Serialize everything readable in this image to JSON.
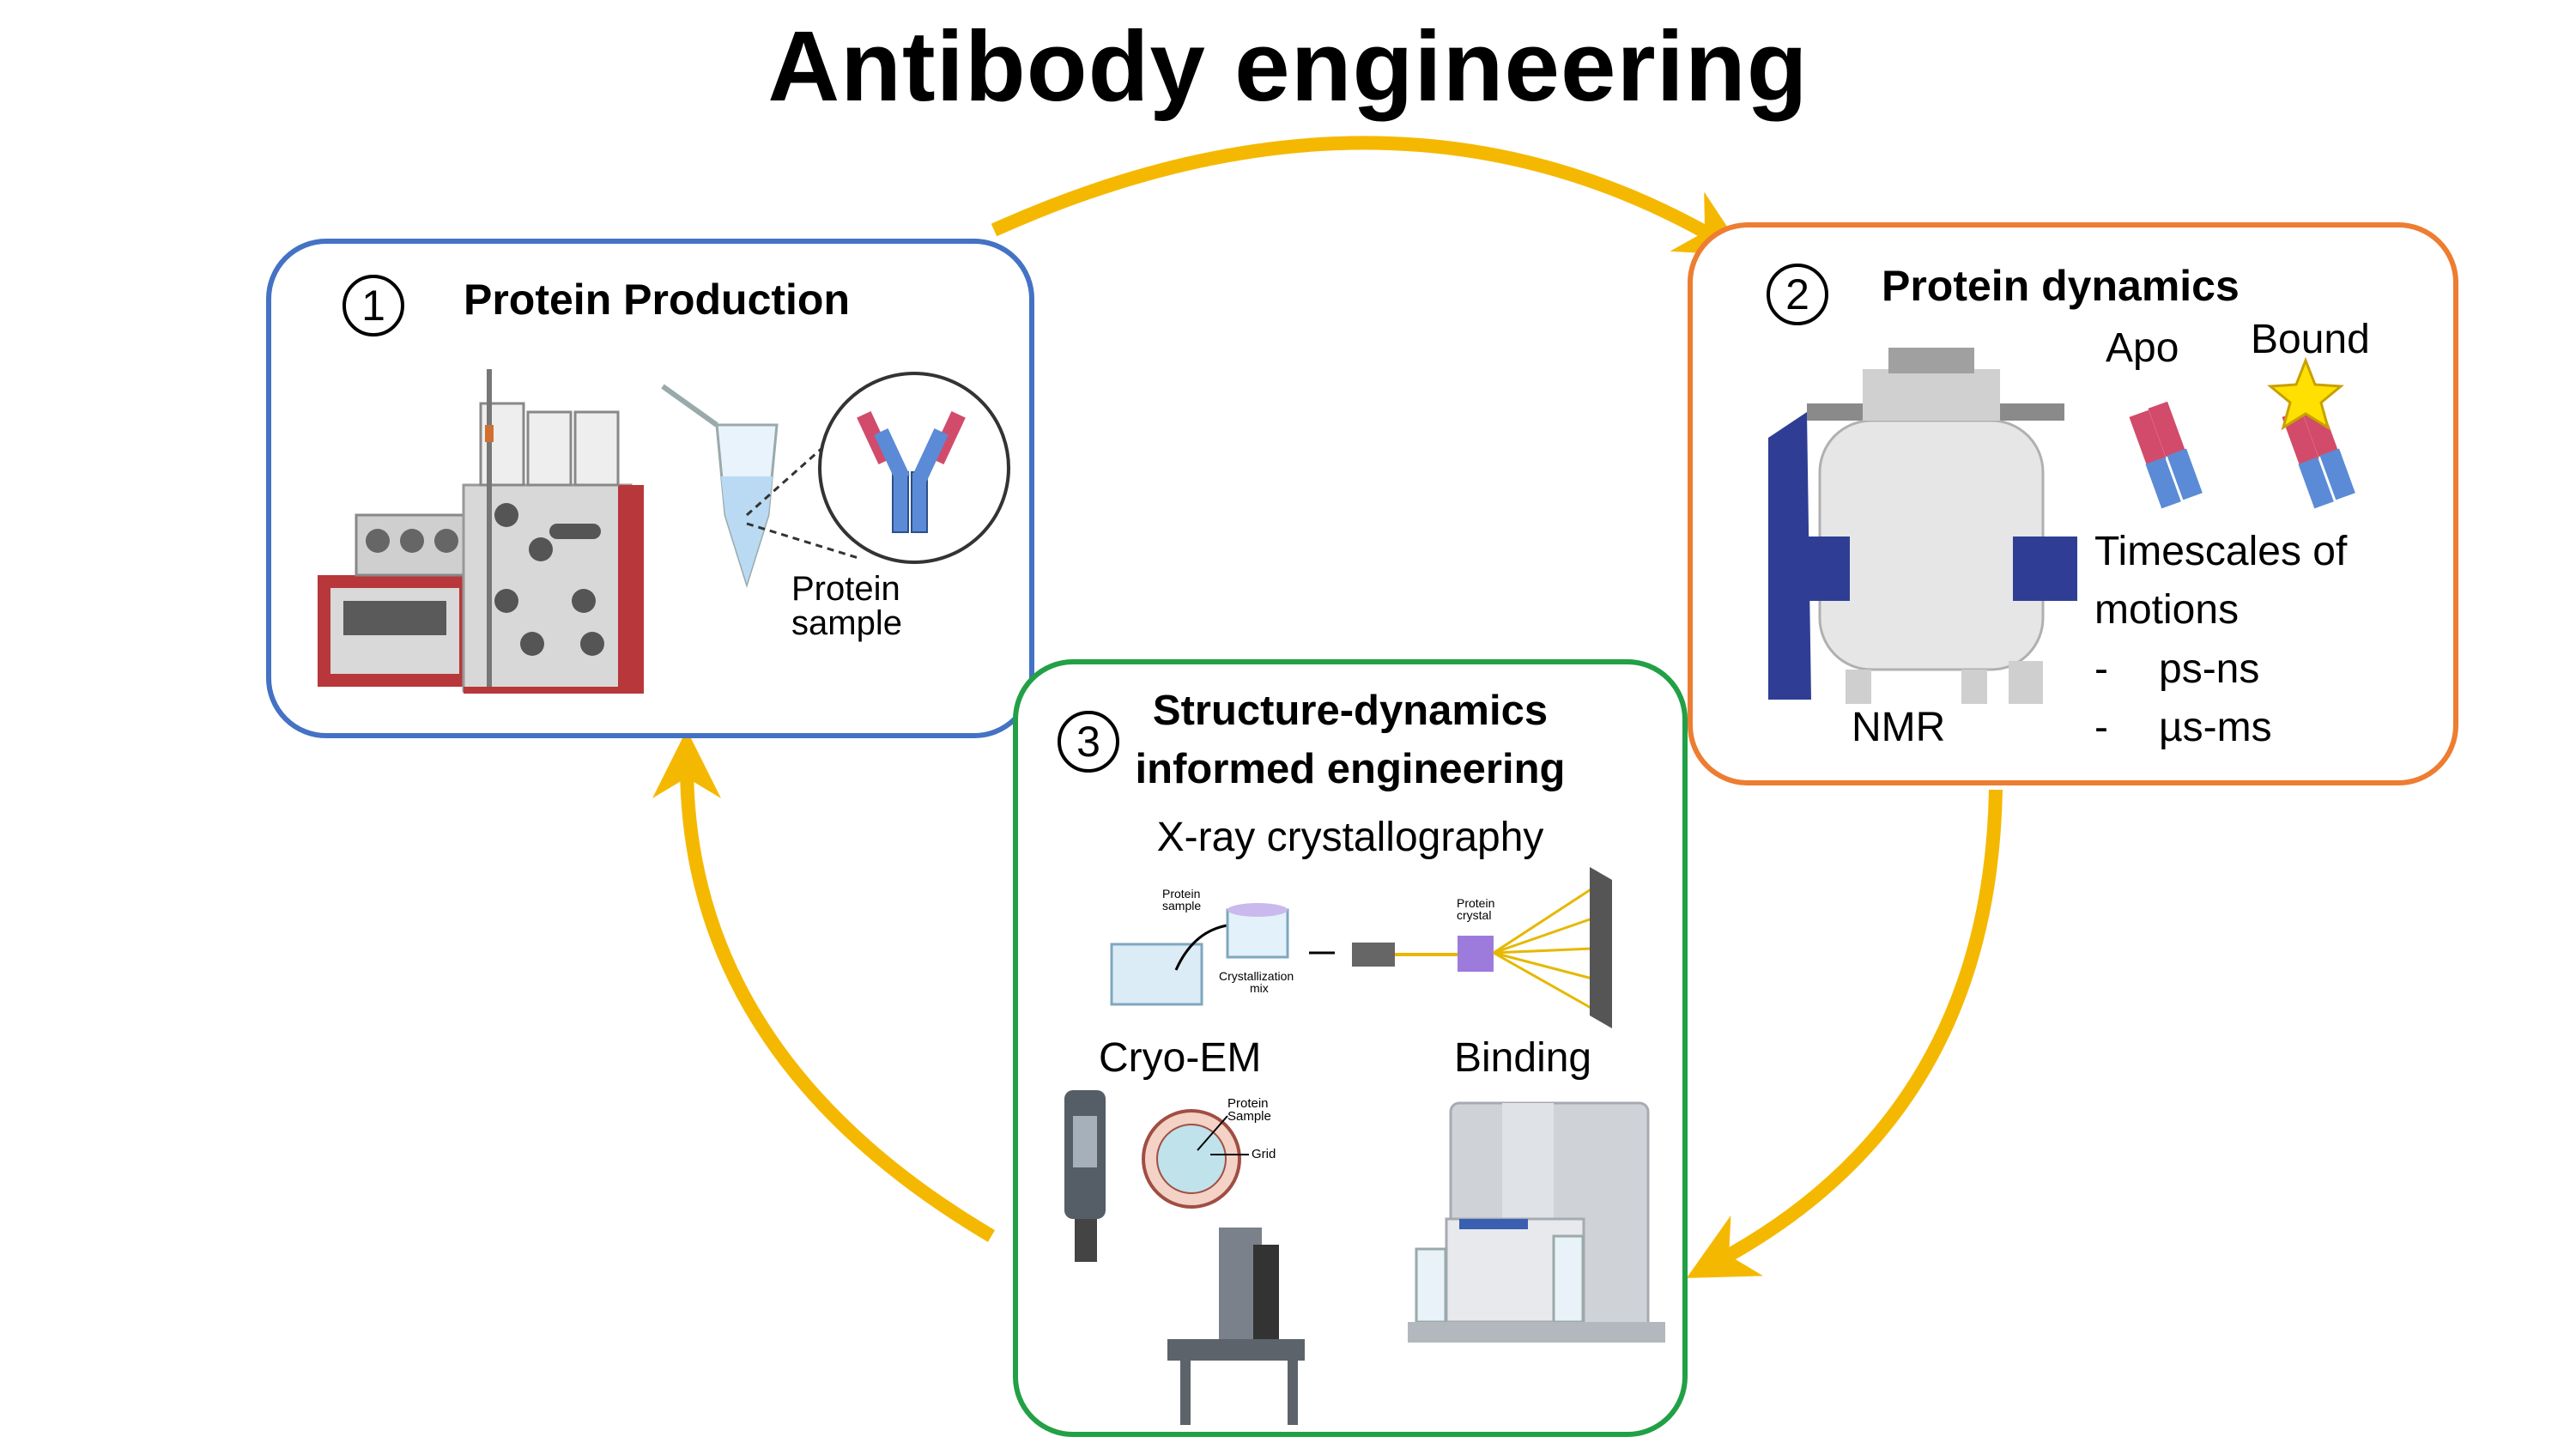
{
  "title": "Antibody engineering",
  "colors": {
    "arrow": "#f5b800",
    "box1_border": "#4472c4",
    "box2_border": "#ed7d31",
    "box3_border": "#22a046",
    "heavy_chain": "#5b8bd6",
    "light_chain": "#d24b6a"
  },
  "panel1": {
    "number": "1",
    "heading": "Protein Production",
    "sample_label_line1": "Protein",
    "sample_label_line2": "sample"
  },
  "panel2": {
    "number": "2",
    "heading": "Protein dynamics",
    "apo_label": "Apo",
    "bound_label": "Bound",
    "instrument_label": "NMR",
    "timescales_line1": "Timescales of",
    "timescales_line2": "motions",
    "bullet_dash": "-",
    "timescale_1": "ps-ns",
    "timescale_2": "µs-ms"
  },
  "panel3": {
    "number": "3",
    "heading_line1": "Structure-dynamics",
    "heading_line2": "informed engineering",
    "xray_label": "X-ray crystallography",
    "xray_sample_line1": "Protein",
    "xray_sample_line2": "sample",
    "crystallization_line1": "Crystallization",
    "crystallization_line2": "mix",
    "crystal_line1": "Protein",
    "crystal_line2": "crystal",
    "cryo_label": "Cryo-EM",
    "cryo_sample_line1": "Protein",
    "cryo_sample_line2": "Sample",
    "grid_label": "Grid",
    "binding_label": "Binding"
  }
}
